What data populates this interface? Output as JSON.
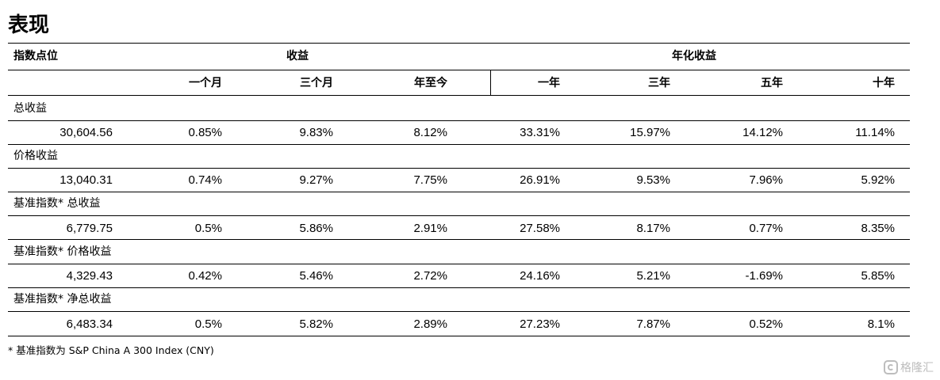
{
  "title": "表现",
  "header": {
    "index_level": "指数点位",
    "returns": "收益",
    "annualized": "年化收益",
    "periods": [
      "一个月",
      "三个月",
      "年至今",
      "一年",
      "三年",
      "五年",
      "十年"
    ]
  },
  "rows": [
    {
      "label": "总收益",
      "values": [
        "30,604.56",
        "0.85%",
        "9.83%",
        "8.12%",
        "33.31%",
        "15.97%",
        "14.12%",
        "11.14%"
      ]
    },
    {
      "label": "价格收益",
      "values": [
        "13,040.31",
        "0.74%",
        "9.27%",
        "7.75%",
        "26.91%",
        "9.53%",
        "7.96%",
        "5.92%"
      ]
    },
    {
      "label": "基准指数* 总收益",
      "values": [
        "6,779.75",
        "0.5%",
        "5.86%",
        "2.91%",
        "27.58%",
        "8.17%",
        "0.77%",
        "8.35%"
      ]
    },
    {
      "label": "基准指数* 价格收益",
      "values": [
        "4,329.43",
        "0.42%",
        "5.46%",
        "2.72%",
        "24.16%",
        "5.21%",
        "-1.69%",
        "5.85%"
      ]
    },
    {
      "label": "基准指数* 净总收益",
      "values": [
        "6,483.34",
        "0.5%",
        "5.82%",
        "2.89%",
        "27.23%",
        "7.87%",
        "0.52%",
        "8.1%"
      ]
    }
  ],
  "footnote": "* 基准指数为 S&P China A 300 Index (CNY)",
  "watermark": "格隆汇"
}
